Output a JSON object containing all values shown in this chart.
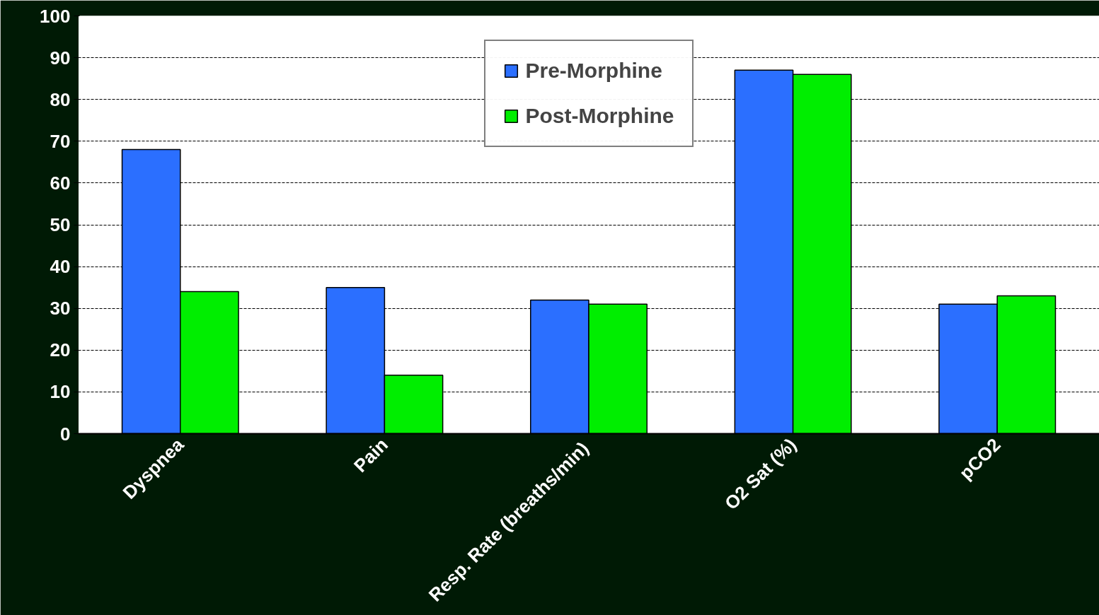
{
  "chart_data": {
    "type": "bar",
    "categories": [
      "Dyspnea",
      "Pain",
      "Resp. Rate  (breaths/min)",
      "O2 Sat (%)",
      "pCO2"
    ],
    "series": [
      {
        "name": "Pre-Morphine",
        "color": "#2b6fff",
        "values": [
          68,
          35,
          32,
          87,
          31
        ]
      },
      {
        "name": "Post-Morphine",
        "color": "#00ee00",
        "values": [
          34,
          14,
          31,
          86,
          33
        ]
      }
    ],
    "ylim": [
      0,
      100
    ],
    "yticks": [
      0,
      10,
      20,
      30,
      40,
      50,
      60,
      70,
      80,
      90,
      100
    ],
    "grid": "y",
    "legend": "top"
  }
}
